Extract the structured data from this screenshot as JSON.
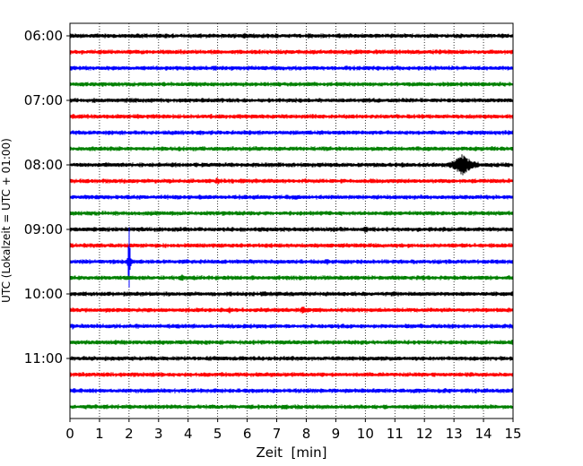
{
  "chart_data": {
    "type": "line",
    "title": "",
    "xlabel": "Zeit  [min]",
    "ylabel": "UTC (Lokalzeit = UTC + 01:00)",
    "xlim": [
      0,
      15
    ],
    "x_ticks": [
      0,
      1,
      2,
      3,
      4,
      5,
      6,
      7,
      8,
      9,
      10,
      11,
      12,
      13,
      14,
      15
    ],
    "x_tick_labels": [
      "0",
      "1",
      "2",
      "3",
      "4",
      "5",
      "6",
      "7",
      "8",
      "9",
      "10",
      "11",
      "12",
      "13",
      "14",
      "15"
    ],
    "vertical_grid": true,
    "grid_style": "dotted",
    "y_tick_labels": [
      "06:00",
      "07:00",
      "08:00",
      "09:00",
      "10:00",
      "11:00"
    ],
    "y_tick_rows": [
      0,
      4,
      8,
      12,
      16,
      20
    ],
    "trace_colors": [
      "#000000",
      "#ff0000",
      "#0000ff",
      "#008000"
    ],
    "traces": [
      {
        "start": "06:00",
        "color": "#000000",
        "events": [
          {
            "t": 1.5,
            "amp": 3
          },
          {
            "t": 5.9,
            "amp": 4
          },
          {
            "t": 8.1,
            "amp": 4
          }
        ]
      },
      {
        "start": "06:15",
        "color": "#ff0000",
        "events": [
          {
            "t": 4.5,
            "amp": 2
          }
        ]
      },
      {
        "start": "06:30",
        "color": "#0000ff",
        "events": [
          {
            "t": 1.0,
            "amp": 2
          },
          {
            "t": 6.8,
            "amp": 2
          }
        ]
      },
      {
        "start": "06:45",
        "color": "#008000",
        "events": [
          {
            "t": 6.6,
            "amp": 2
          }
        ]
      },
      {
        "start": "07:00",
        "color": "#000000",
        "events": []
      },
      {
        "start": "07:15",
        "color": "#ff0000",
        "events": [
          {
            "t": 6.6,
            "amp": 2
          }
        ]
      },
      {
        "start": "07:30",
        "color": "#0000ff",
        "events": [
          {
            "t": 8.3,
            "amp": 2
          }
        ]
      },
      {
        "start": "07:45",
        "color": "#008000",
        "events": []
      },
      {
        "start": "08:00",
        "color": "#000000",
        "events": [
          {
            "t": 3.0,
            "amp": 2
          },
          {
            "t": 7.6,
            "amp": 2
          },
          {
            "t": 13.3,
            "amp": 13
          },
          {
            "t": 13.8,
            "amp": 5
          }
        ]
      },
      {
        "start": "08:15",
        "color": "#ff0000",
        "events": [
          {
            "t": 5.0,
            "amp": 5
          },
          {
            "t": 10.4,
            "amp": 2
          }
        ]
      },
      {
        "start": "08:30",
        "color": "#0000ff",
        "events": []
      },
      {
        "start": "08:45",
        "color": "#008000",
        "events": []
      },
      {
        "start": "09:00",
        "color": "#000000",
        "events": [
          {
            "t": 4.9,
            "amp": 3
          },
          {
            "t": 10.0,
            "amp": 5
          }
        ]
      },
      {
        "start": "09:15",
        "color": "#ff0000",
        "events": []
      },
      {
        "start": "09:30",
        "color": "#0000ff",
        "events": [
          {
            "t": 2.0,
            "amp": 50
          },
          {
            "t": 7.4,
            "amp": 3
          },
          {
            "t": 8.7,
            "amp": 5
          }
        ]
      },
      {
        "start": "09:45",
        "color": "#008000",
        "events": [
          {
            "t": 3.8,
            "amp": 5
          }
        ]
      },
      {
        "start": "10:00",
        "color": "#000000",
        "events": []
      },
      {
        "start": "10:15",
        "color": "#ff0000",
        "events": [
          {
            "t": 5.4,
            "amp": 4
          },
          {
            "t": 7.9,
            "amp": 6
          },
          {
            "t": 14.9,
            "amp": 3
          }
        ]
      },
      {
        "start": "10:30",
        "color": "#0000ff",
        "events": [
          {
            "t": 0.1,
            "amp": 4
          },
          {
            "t": 5.9,
            "amp": 2
          }
        ]
      },
      {
        "start": "10:45",
        "color": "#008000",
        "events": []
      },
      {
        "start": "11:00",
        "color": "#000000",
        "events": [
          {
            "t": 4.0,
            "amp": 2
          }
        ]
      },
      {
        "start": "11:15",
        "color": "#ff0000",
        "events": [
          {
            "t": 11.7,
            "amp": 3
          }
        ]
      },
      {
        "start": "11:30",
        "color": "#0000ff",
        "events": [
          {
            "t": 11.7,
            "amp": 3
          }
        ]
      },
      {
        "start": "11:45",
        "color": "#008000",
        "events": [
          {
            "t": 10.7,
            "amp": 3
          }
        ]
      }
    ]
  }
}
